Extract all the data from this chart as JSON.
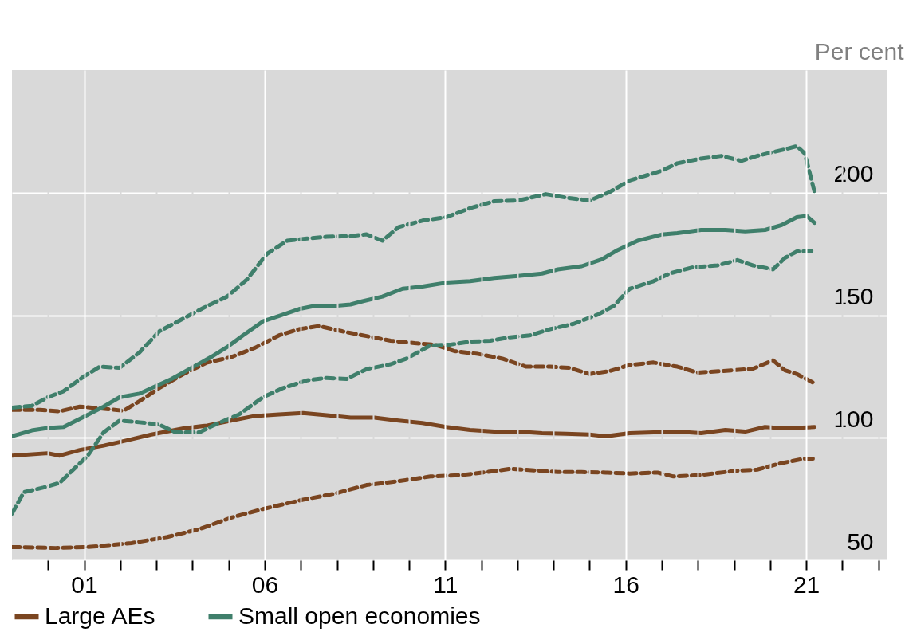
{
  "chart_data": {
    "type": "line",
    "ylabel": "Per cent",
    "xlim": [
      1999,
      2023.25
    ],
    "ylim": [
      50,
      250
    ],
    "xticks": [
      {
        "value": 2000,
        "label": null
      },
      {
        "value": 2001,
        "label": "01"
      },
      {
        "value": 2002,
        "label": null
      },
      {
        "value": 2003,
        "label": null
      },
      {
        "value": 2004,
        "label": null
      },
      {
        "value": 2005,
        "label": null
      },
      {
        "value": 2006,
        "label": "06"
      },
      {
        "value": 2007,
        "label": null
      },
      {
        "value": 2008,
        "label": null
      },
      {
        "value": 2009,
        "label": null
      },
      {
        "value": 2010,
        "label": null
      },
      {
        "value": 2011,
        "label": "11"
      },
      {
        "value": 2012,
        "label": null
      },
      {
        "value": 2013,
        "label": null
      },
      {
        "value": 2014,
        "label": null
      },
      {
        "value": 2015,
        "label": null
      },
      {
        "value": 2016,
        "label": "16"
      },
      {
        "value": 2017,
        "label": null
      },
      {
        "value": 2018,
        "label": null
      },
      {
        "value": 2019,
        "label": null
      },
      {
        "value": 2020,
        "label": null
      },
      {
        "value": 2021,
        "label": "21"
      },
      {
        "value": 2022,
        "label": null
      },
      {
        "value": 2023,
        "label": null
      }
    ],
    "yticks": [
      50,
      100,
      150,
      200
    ],
    "grid": true,
    "legend": "bottom",
    "series": [
      {
        "name": "Large AEs",
        "color": "#7a4520",
        "line_style": "solid",
        "x": [
          1999,
          1999.99,
          2000.32,
          2000.88,
          2001.54,
          2002.2,
          2002.86,
          2003.75,
          2004.41,
          2005.07,
          2005.73,
          2006.4,
          2007.06,
          2007.72,
          2008.38,
          2009.04,
          2009.71,
          2010.37,
          2011.03,
          2011.69,
          2012.36,
          2013.02,
          2013.68,
          2014.34,
          2015,
          2015.45,
          2016.11,
          2016.77,
          2017.43,
          2018.09,
          2018.76,
          2019.31,
          2019.86,
          2020.41,
          2021.23
        ],
        "values": [
          92.7,
          93.7,
          92.7,
          95,
          96.8,
          99,
          101.3,
          103.8,
          105,
          107,
          108.9,
          109.5,
          110.1,
          109.2,
          108.2,
          108.2,
          107,
          106,
          104.4,
          103.2,
          102.5,
          102.5,
          101.9,
          101.6,
          101.3,
          100.6,
          101.9,
          102.2,
          102.5,
          101.9,
          103.2,
          102.5,
          104.4,
          103.8,
          104.4
        ]
      },
      {
        "color": "#7a4520",
        "line_style": "dashed",
        "x": [
          1999,
          1999.77,
          2000.32,
          2000.88,
          2001.43,
          2002.09,
          2002.53,
          2003.08,
          2003.75,
          2004.41,
          2005.07,
          2005.73,
          2006.4,
          2006.95,
          2007.5,
          2008.16,
          2008.82,
          2009.49,
          2010.15,
          2010.7,
          2011.25,
          2011.91,
          2012.58,
          2013.24,
          2013.9,
          2014.45,
          2015,
          2015.56,
          2016.11,
          2016.77,
          2017.43,
          2017.98,
          2018.65,
          2019.53,
          2020.08,
          2020.41,
          2020.74,
          2021.23
        ],
        "values": [
          111.4,
          111.4,
          110.8,
          112.7,
          112,
          111,
          114.9,
          120.3,
          126,
          130.7,
          132.9,
          136.7,
          141.8,
          144.3,
          145.6,
          143.4,
          141.5,
          139.6,
          138.6,
          138,
          135.4,
          134.2,
          132.3,
          129,
          129,
          128.5,
          126,
          127.2,
          129.7,
          130.7,
          129,
          126.6,
          127.2,
          128.2,
          131.6,
          127.5,
          126,
          122.2
        ]
      },
      {
        "color": "#7a4520",
        "line_style": "dashed",
        "x": [
          1999,
          2000.21,
          2001.1,
          2002.31,
          2003.3,
          2004.19,
          2005.07,
          2005.95,
          2007.06,
          2007.94,
          2008.82,
          2009.71,
          2010.59,
          2011.47,
          2012.36,
          2012.8,
          2013.46,
          2014.12,
          2014.78,
          2015.45,
          2016.11,
          2016.88,
          2017.32,
          2018.09,
          2018.98,
          2019.64,
          2020.3,
          2020.96,
          2021.23
        ],
        "values": [
          55.4,
          55,
          55.4,
          57,
          59.5,
          62.7,
          67.4,
          70.9,
          74.7,
          77.2,
          80.7,
          82.3,
          84.2,
          84.8,
          86.4,
          87.3,
          86.7,
          86,
          86,
          85.8,
          85.4,
          85.8,
          84.2,
          84.8,
          86.4,
          87,
          89.6,
          91.5,
          91.5
        ]
      },
      {
        "name": "Small open economies",
        "color": "#3f7f6b",
        "line_style": "solid",
        "x": [
          1999,
          1999.55,
          1999.99,
          2000.43,
          2000.99,
          2001.54,
          2001.98,
          2002.53,
          2002.97,
          2003.42,
          2003.97,
          2004.52,
          2004.96,
          2005.4,
          2005.95,
          2006.4,
          2006.95,
          2007.39,
          2007.94,
          2008.38,
          2008.71,
          2009.26,
          2009.82,
          2010.37,
          2011.03,
          2011.69,
          2012.36,
          2013.02,
          2013.68,
          2014.12,
          2014.78,
          2015.34,
          2015.78,
          2016.33,
          2016.99,
          2017.43,
          2018.09,
          2018.76,
          2019.31,
          2019.86,
          2020.3,
          2020.74,
          2021.01,
          2021.23
        ],
        "values": [
          100.6,
          103,
          104,
          104.4,
          108.5,
          112.7,
          116.5,
          118,
          121,
          124,
          128.5,
          133,
          137,
          141.8,
          147.5,
          149.7,
          152.5,
          153.8,
          153.8,
          154.4,
          155.7,
          157.6,
          160.8,
          161.7,
          163.3,
          163.9,
          165.2,
          166,
          167,
          168.7,
          170,
          172.8,
          176.6,
          180.4,
          182.9,
          183.5,
          184.8,
          184.8,
          184.2,
          184.8,
          186.7,
          190,
          190.5,
          187.7
        ]
      },
      {
        "color": "#3f7f6b",
        "line_style": "dashed",
        "x": [
          1999,
          1999.55,
          1999.99,
          2000.43,
          2000.99,
          2001.43,
          2001.98,
          2002.53,
          2003.08,
          2003.75,
          2004.41,
          2004.96,
          2005.51,
          2006.06,
          2006.62,
          2007.17,
          2007.72,
          2008.38,
          2008.82,
          2009.26,
          2009.71,
          2010.37,
          2011.03,
          2011.69,
          2012.36,
          2013.02,
          2013.79,
          2014.34,
          2015,
          2015.56,
          2016.11,
          2016.99,
          2017.43,
          2018.09,
          2018.65,
          2019.2,
          2019.64,
          2020.41,
          2020.74,
          2020.96,
          2021.23
        ],
        "values": [
          112.3,
          113,
          116.5,
          119,
          125,
          129,
          128.5,
          134.8,
          143.4,
          148.7,
          153.8,
          157.6,
          164.6,
          175,
          180.4,
          181.3,
          182,
          182.3,
          183,
          180.4,
          186,
          188.6,
          190,
          193.7,
          196.5,
          196.8,
          199.4,
          198,
          196.8,
          200.3,
          205,
          208.9,
          212,
          213.9,
          215,
          213,
          215,
          217.7,
          219,
          216,
          200.3
        ]
      },
      {
        "color": "#3f7f6b",
        "line_style": "dashed",
        "x": [
          1999,
          1999.33,
          1999.88,
          2000.32,
          2000.77,
          2001.1,
          2001.54,
          2001.98,
          2002.53,
          2003.08,
          2003.53,
          2004.19,
          2004.63,
          2005.29,
          2005.95,
          2006.51,
          2007.17,
          2007.72,
          2008.27,
          2008.82,
          2009.49,
          2009.93,
          2010.59,
          2011.14,
          2011.69,
          2012.25,
          2012.8,
          2013.35,
          2013.9,
          2014.56,
          2015.23,
          2015.67,
          2016.11,
          2016.77,
          2017.21,
          2017.87,
          2018.54,
          2019.09,
          2019.53,
          2020.08,
          2020.41,
          2020.74,
          2021.23
        ],
        "values": [
          69,
          77.8,
          79.7,
          81.6,
          88,
          92.7,
          102.2,
          107,
          106.3,
          105.4,
          102.2,
          102.2,
          105.4,
          109.5,
          116.5,
          120.3,
          123.4,
          124.4,
          124,
          128,
          130,
          132.3,
          137.7,
          138,
          139.2,
          139.6,
          141,
          141.8,
          144.3,
          146.5,
          150.3,
          153.8,
          160.8,
          163.9,
          167,
          169.6,
          170.3,
          172.5,
          170.3,
          168.7,
          173.4,
          176,
          176.3
        ]
      }
    ]
  }
}
